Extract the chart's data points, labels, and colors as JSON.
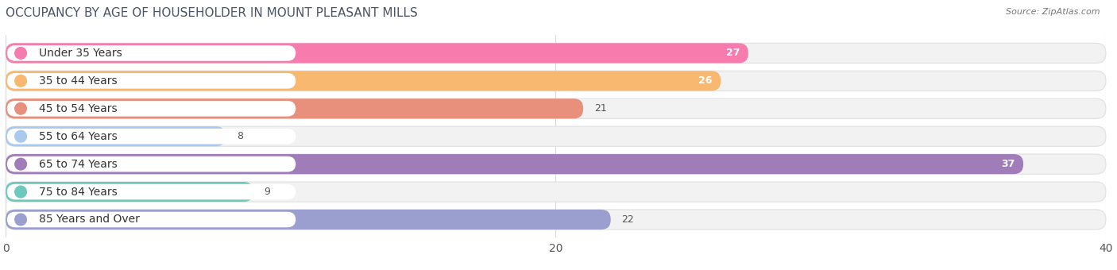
{
  "title": "OCCUPANCY BY AGE OF HOUSEHOLDER IN MOUNT PLEASANT MILLS",
  "source": "Source: ZipAtlas.com",
  "categories": [
    "Under 35 Years",
    "35 to 44 Years",
    "45 to 54 Years",
    "55 to 64 Years",
    "65 to 74 Years",
    "75 to 84 Years",
    "85 Years and Over"
  ],
  "values": [
    27,
    26,
    21,
    8,
    37,
    9,
    22
  ],
  "bar_colors": [
    "#F87BAE",
    "#F9B870",
    "#E8907C",
    "#A9C9EE",
    "#A07DB8",
    "#6DC8BE",
    "#9B9FD0"
  ],
  "bar_bg_colors": [
    "#F0F0F0",
    "#F0F0F0",
    "#F0F0F0",
    "#F0F0F0",
    "#F0F0F0",
    "#F0F0F0",
    "#F0F0F0"
  ],
  "xlim": [
    0,
    40
  ],
  "xticks": [
    0,
    20,
    40
  ],
  "background_color": "#ffffff",
  "bar_height": 0.72,
  "label_inside_color": "#ffffff",
  "label_outside_color": "#555555",
  "title_fontsize": 11,
  "tick_fontsize": 10,
  "category_fontsize": 10,
  "value_fontsize": 9,
  "title_color": "#4a5568"
}
